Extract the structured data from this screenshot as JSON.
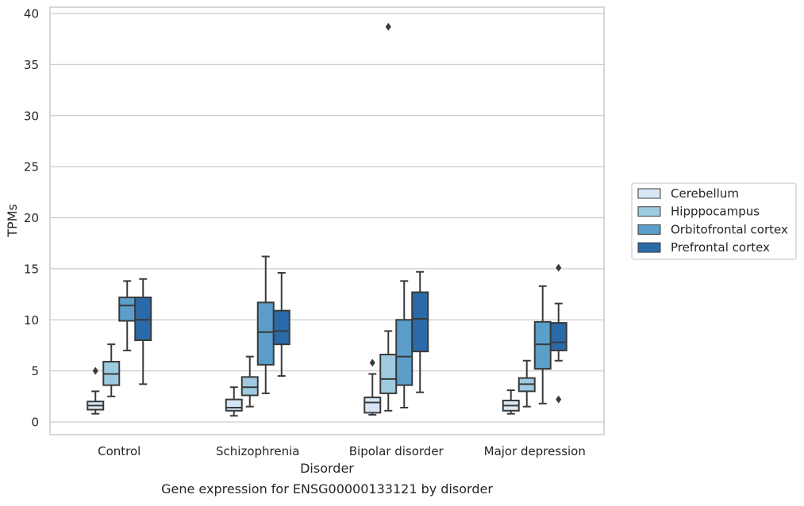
{
  "chart_data": {
    "type": "box",
    "title": "Gene expression for ENSG00000133121 by disorder",
    "xlabel": "Disorder",
    "ylabel": "TPMs",
    "ylim": [
      -1.2,
      40.6
    ],
    "yticks": [
      0,
      5,
      10,
      15,
      20,
      25,
      30,
      35,
      40
    ],
    "grid": true,
    "legend_position": "right",
    "categories": [
      "Control",
      "Schizophrenia",
      "Bipolar disorder",
      "Major depression"
    ],
    "series": [
      {
        "name": "Cerebellum",
        "color": "#d6e6f4",
        "boxes": [
          {
            "whisker_low": 0.8,
            "q1": 1.2,
            "median": 1.6,
            "q3": 2.0,
            "whisker_high": 3.0,
            "outliers": [
              5.0
            ]
          },
          {
            "whisker_low": 0.6,
            "q1": 1.1,
            "median": 1.4,
            "q3": 2.2,
            "whisker_high": 3.4,
            "outliers": []
          },
          {
            "whisker_low": 0.7,
            "q1": 0.9,
            "median": 1.9,
            "q3": 2.4,
            "whisker_high": 4.7,
            "outliers": [
              5.8
            ]
          },
          {
            "whisker_low": 0.8,
            "q1": 1.1,
            "median": 1.6,
            "q3": 2.1,
            "whisker_high": 3.1,
            "outliers": []
          }
        ]
      },
      {
        "name": "Hipppocampus",
        "color": "#9ecae1",
        "boxes": [
          {
            "whisker_low": 2.5,
            "q1": 3.6,
            "median": 4.7,
            "q3": 5.9,
            "whisker_high": 7.6,
            "outliers": []
          },
          {
            "whisker_low": 1.5,
            "q1": 2.6,
            "median": 3.4,
            "q3": 4.4,
            "whisker_high": 6.4,
            "outliers": []
          },
          {
            "whisker_low": 1.1,
            "q1": 2.8,
            "median": 4.2,
            "q3": 6.6,
            "whisker_high": 8.9,
            "outliers": [
              38.7
            ]
          },
          {
            "whisker_low": 1.5,
            "q1": 3.0,
            "median": 3.7,
            "q3": 4.3,
            "whisker_high": 6.0,
            "outliers": []
          }
        ]
      },
      {
        "name": "Orbitofrontal cortex",
        "color": "#5a9ec9",
        "boxes": [
          {
            "whisker_low": 7.0,
            "q1": 9.9,
            "median": 11.4,
            "q3": 12.2,
            "whisker_high": 13.8,
            "outliers": []
          },
          {
            "whisker_low": 2.8,
            "q1": 5.6,
            "median": 8.8,
            "q3": 11.7,
            "whisker_high": 16.2,
            "outliers": []
          },
          {
            "whisker_low": 1.4,
            "q1": 3.6,
            "median": 6.4,
            "q3": 10.0,
            "whisker_high": 13.8,
            "outliers": []
          },
          {
            "whisker_low": 1.8,
            "q1": 5.2,
            "median": 7.6,
            "q3": 9.8,
            "whisker_high": 13.3,
            "outliers": []
          }
        ]
      },
      {
        "name": "Prefrontal cortex",
        "color": "#2b6aa8",
        "boxes": [
          {
            "whisker_low": 3.7,
            "q1": 8.0,
            "median": 10.0,
            "q3": 12.2,
            "whisker_high": 14.0,
            "outliers": []
          },
          {
            "whisker_low": 4.5,
            "q1": 7.6,
            "median": 8.9,
            "q3": 10.9,
            "whisker_high": 14.6,
            "outliers": []
          },
          {
            "whisker_low": 2.9,
            "q1": 6.9,
            "median": 10.1,
            "q3": 12.7,
            "whisker_high": 14.7,
            "outliers": []
          },
          {
            "whisker_low": 6.0,
            "q1": 7.0,
            "median": 7.8,
            "q3": 9.7,
            "whisker_high": 11.6,
            "outliers": [
              15.1,
              2.2
            ]
          }
        ]
      }
    ]
  }
}
